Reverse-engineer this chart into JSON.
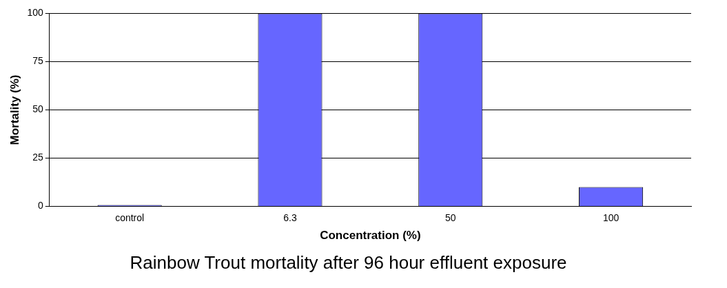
{
  "chart_data": {
    "type": "bar",
    "title": "Rainbow Trout mortality after 96 hour effluent exposure",
    "xlabel": "Concentration (%)",
    "ylabel": "Mortality (%)",
    "categories": [
      "control",
      "6.3",
      "50",
      "100"
    ],
    "values": [
      0,
      100,
      100,
      10
    ],
    "color": "#6666ff",
    "ylim": [
      0,
      100
    ],
    "yticks": [
      0,
      25,
      50,
      75,
      100
    ],
    "grid": "y",
    "legend": false
  }
}
